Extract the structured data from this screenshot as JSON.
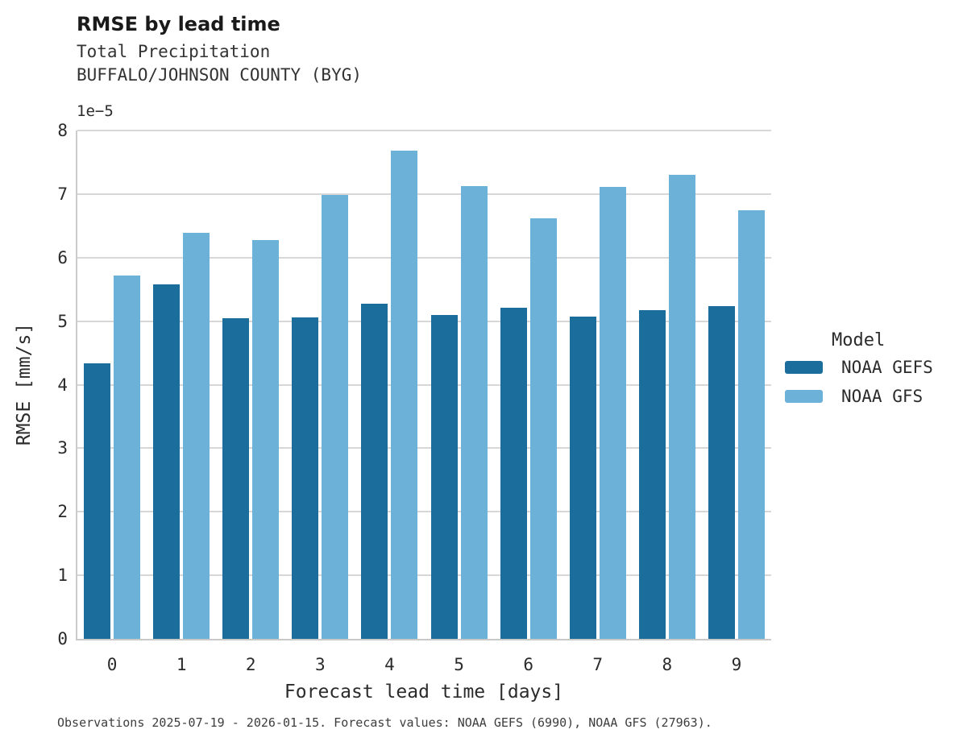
{
  "header": {
    "title": "RMSE by lead time",
    "subtitle": "Total Precipitation",
    "station": "BUFFALO/JOHNSON COUNTY (BYG)"
  },
  "axes": {
    "y_offset_label": "1e−5",
    "y_label": "RMSE [mm/s]",
    "x_label": "Forecast lead time [days]",
    "y_ticks": [
      0,
      1,
      2,
      3,
      4,
      5,
      6,
      7,
      8
    ],
    "x_ticks": [
      "0",
      "1",
      "2",
      "3",
      "4",
      "5",
      "6",
      "7",
      "8",
      "9"
    ]
  },
  "legend": {
    "title": "Model",
    "entries": [
      {
        "label": "NOAA GEFS",
        "color": "#1b6d9c"
      },
      {
        "label": "NOAA GFS",
        "color": "#6bb1d8"
      }
    ]
  },
  "footer": {
    "text": "Observations 2025-07-19 - 2026-01-15. Forecast values: NOAA GEFS (6990), NOAA GFS (27963)."
  },
  "chart_data": {
    "type": "bar",
    "title": "RMSE by lead time",
    "subtitle": "Total Precipitation",
    "station": "BUFFALO/JOHNSON COUNTY (BYG)",
    "categories": [
      "0",
      "1",
      "2",
      "3",
      "4",
      "5",
      "6",
      "7",
      "8",
      "9"
    ],
    "series": [
      {
        "name": "NOAA GEFS",
        "color": "#1b6d9c",
        "values": [
          4.33,
          5.58,
          5.05,
          5.06,
          5.28,
          5.1,
          5.21,
          5.07,
          5.17,
          5.23
        ]
      },
      {
        "name": "NOAA GFS",
        "color": "#6bb1d8",
        "values": [
          5.72,
          6.39,
          6.27,
          6.98,
          7.68,
          7.12,
          6.62,
          7.11,
          7.3,
          6.74
        ]
      }
    ],
    "value_unit": "1e-5 mm/s",
    "xlabel": "Forecast lead time [days]",
    "ylabel": "RMSE [mm/s]",
    "ylim": [
      0,
      8
    ],
    "grid": true,
    "legend_title": "Model",
    "legend_position": "right"
  }
}
